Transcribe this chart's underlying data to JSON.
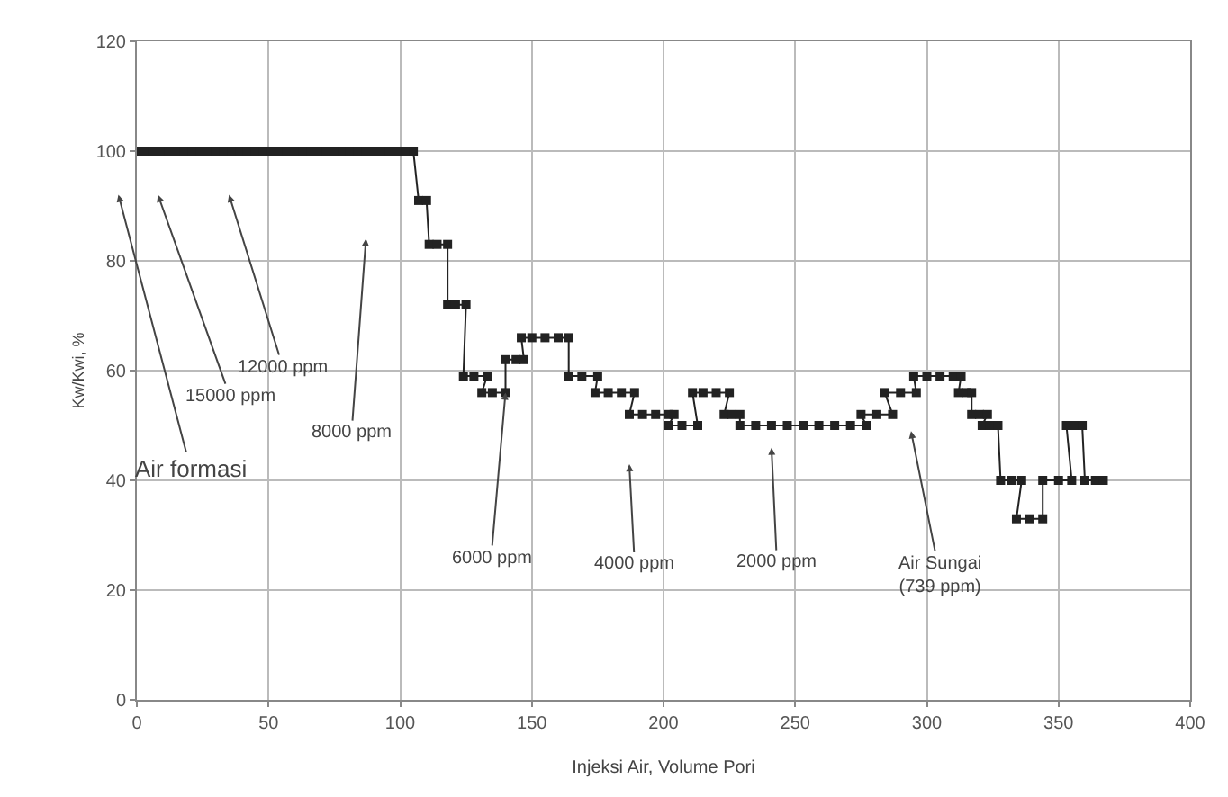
{
  "chart_data": {
    "type": "line",
    "xlabel": "Injeksi Air, Volume Pori",
    "ylabel": "Kw/Kwi, %",
    "xlim": [
      0,
      400
    ],
    "xticks": [
      0,
      50,
      {
        "value": 100,
        "label": "100"
      },
      150,
      200,
      250,
      300,
      350,
      400
    ],
    "ylim": [
      0,
      120
    ],
    "yticks": [
      0,
      20,
      40,
      60,
      80,
      100,
      120
    ],
    "grid": true,
    "marker": "square",
    "line_style": "solid",
    "series": [
      {
        "color": "#222222",
        "x": [
          0,
          3,
          6,
          9,
          12,
          15,
          18,
          21,
          24,
          27,
          30,
          33,
          36,
          39,
          42,
          45,
          48,
          51,
          54,
          57,
          60,
          63,
          66,
          69,
          72,
          75,
          78,
          81,
          84,
          87,
          90,
          93,
          96,
          99,
          102,
          105,
          107,
          110,
          111,
          114,
          118,
          118,
          121,
          125,
          124,
          128,
          133,
          131,
          135,
          140,
          140,
          144,
          147,
          146,
          150,
          155,
          160,
          164,
          164,
          169,
          175,
          174,
          179,
          184,
          189,
          187,
          192,
          197,
          202,
          204,
          202,
          207,
          213,
          211,
          215,
          220,
          225,
          223,
          226,
          229,
          229,
          235,
          241,
          247,
          253,
          259,
          265,
          271,
          277,
          275,
          281,
          287,
          284,
          290,
          296,
          295,
          300,
          305,
          310,
          313,
          312,
          315,
          317,
          317,
          320,
          323,
          321,
          324,
          327,
          328,
          332,
          336,
          334,
          339,
          344,
          344,
          350,
          355,
          353,
          356,
          359,
          360,
          364,
          367
        ],
        "values": [
          100,
          100,
          100,
          100,
          100,
          100,
          100,
          100,
          100,
          100,
          100,
          100,
          100,
          100,
          100,
          100,
          100,
          100,
          100,
          100,
          100,
          100,
          100,
          100,
          100,
          100,
          100,
          100,
          100,
          100,
          100,
          100,
          100,
          100,
          100,
          100,
          91,
          91,
          83,
          83,
          83,
          72,
          72,
          72,
          59,
          59,
          59,
          56,
          56,
          56,
          62,
          62,
          62,
          66,
          66,
          66,
          66,
          66,
          59,
          59,
          59,
          56,
          56,
          56,
          56,
          52,
          52,
          52,
          52,
          52,
          50,
          50,
          50,
          56,
          56,
          56,
          56,
          52,
          52,
          52,
          50,
          50,
          50,
          50,
          50,
          50,
          50,
          50,
          50,
          52,
          52,
          52,
          56,
          56,
          56,
          59,
          59,
          59,
          59,
          59,
          56,
          56,
          56,
          52,
          52,
          52,
          50,
          50,
          50,
          40,
          40,
          40,
          33,
          33,
          33,
          40,
          40,
          40,
          50,
          50,
          50,
          40,
          40,
          40
        ]
      }
    ],
    "annotations": [
      "Air formasi",
      "15000 ppm",
      "12000 ppm",
      "8000 ppm",
      {
        "text": "6000 ppm",
        "x": 140,
        "y": 56
      },
      "4000 ppm",
      "2000 ppm",
      "Air Sungai\n(739 ppm)"
    ]
  }
}
